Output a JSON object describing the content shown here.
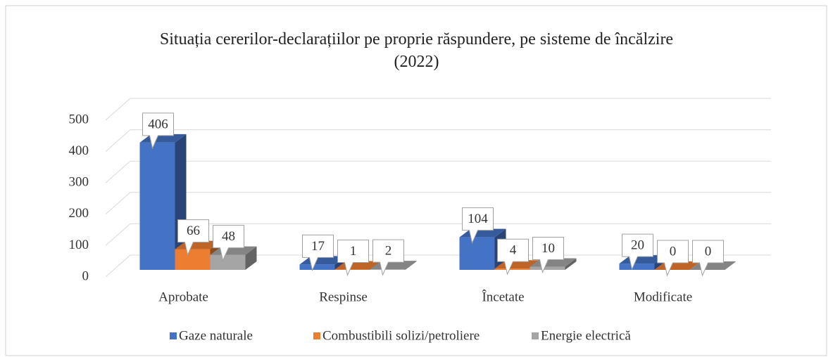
{
  "chart_data": {
    "type": "bar3d",
    "title": "Situația cererilor-declarațiilor pe proprie răspundere, pe sisteme de încălzire (2022)",
    "categories": [
      "Aprobate",
      "Respinse",
      "Încetate",
      "Modificate"
    ],
    "series": [
      {
        "name": "Gaze naturale",
        "color": "#4472c4",
        "values": [
          406,
          17,
          104,
          20
        ]
      },
      {
        "name": "Combustibili solizi/petroliere",
        "color": "#ed7d31",
        "values": [
          66,
          1,
          4,
          0
        ]
      },
      {
        "name": "Energie electrică",
        "color": "#a5a5a5",
        "values": [
          48,
          2,
          10,
          0
        ]
      }
    ],
    "ylim": [
      0,
      500
    ],
    "yticks": [
      0,
      100,
      200,
      300,
      400,
      500
    ],
    "grid": true,
    "legend": "bottom"
  }
}
